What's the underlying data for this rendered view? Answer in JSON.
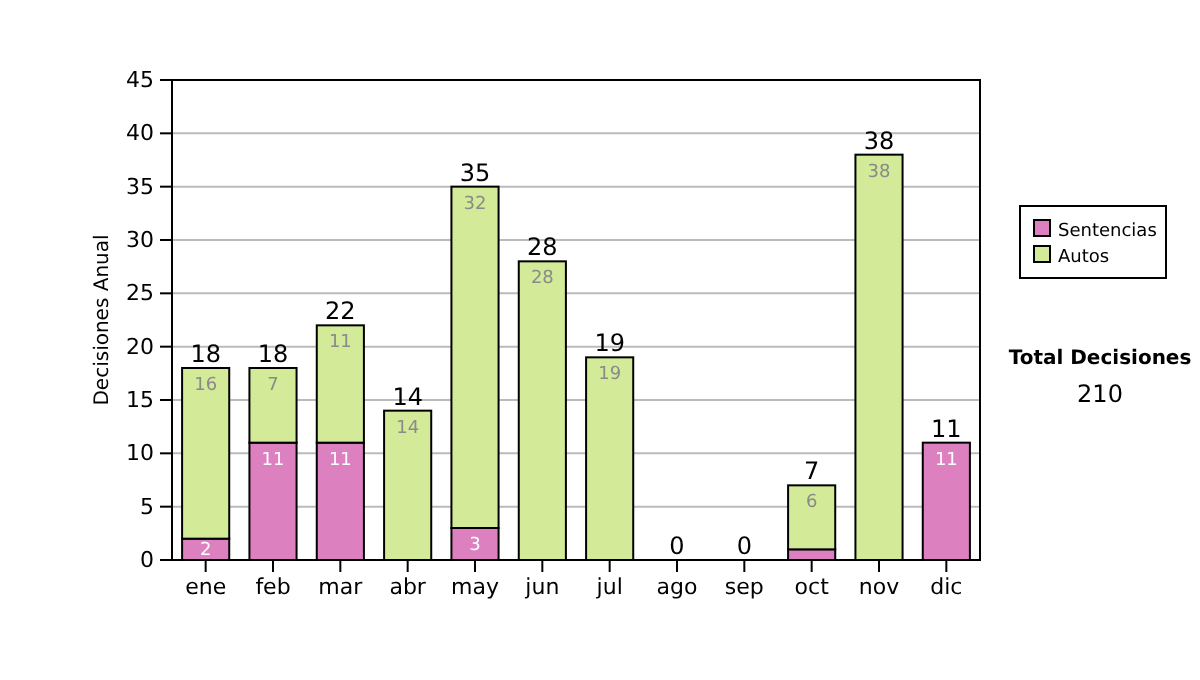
{
  "chart_data": {
    "type": "bar",
    "stacked": true,
    "ylabel": "Decisiones Anual",
    "categories": [
      "ene",
      "feb",
      "mar",
      "abr",
      "may",
      "jun",
      "jul",
      "ago",
      "sep",
      "oct",
      "nov",
      "dic"
    ],
    "series": [
      {
        "name": "Sentencias",
        "color": "#dd80c0",
        "values": [
          2,
          11,
          11,
          0,
          3,
          0,
          0,
          0,
          0,
          1,
          0,
          11
        ],
        "value_labels": [
          "2",
          "11",
          "11",
          null,
          "3",
          null,
          null,
          null,
          null,
          null,
          null,
          "11"
        ]
      },
      {
        "name": "Autos",
        "color": "#d3eb98",
        "values": [
          16,
          7,
          11,
          14,
          32,
          28,
          19,
          0,
          0,
          6,
          38,
          0
        ],
        "value_labels": [
          "16",
          "7",
          "11",
          "14",
          "32",
          "28",
          "19",
          null,
          null,
          "6",
          "38",
          null
        ]
      }
    ],
    "totals": [
      "18",
      "18",
      "22",
      "14",
      "35",
      "28",
      "19",
      "0",
      "0",
      "7",
      "38",
      "11"
    ],
    "ylim": [
      0,
      45
    ],
    "yticks": [
      0,
      5,
      10,
      15,
      20,
      25,
      30,
      35,
      40,
      45
    ],
    "grid": "y",
    "legend": "right",
    "annotations": [
      "Total Decisiones",
      "210"
    ]
  }
}
